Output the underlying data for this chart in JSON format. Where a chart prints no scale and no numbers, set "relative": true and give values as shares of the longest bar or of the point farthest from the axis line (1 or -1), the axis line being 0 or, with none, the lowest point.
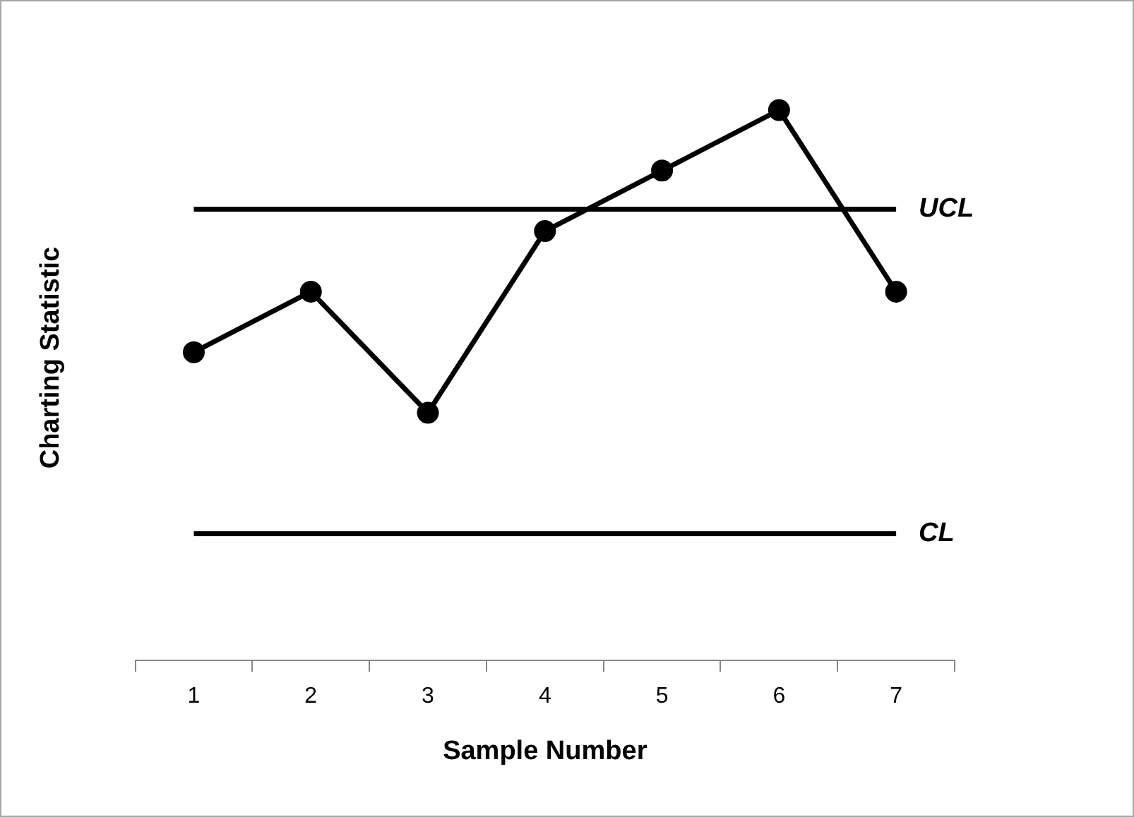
{
  "chart_data": {
    "type": "line",
    "xlabel": "Sample Number",
    "ylabel": "Charting Statistic",
    "categories": [
      "1",
      "2",
      "3",
      "4",
      "5",
      "6",
      "7"
    ],
    "series": [
      {
        "color": "#000000",
        "values": [
          0.56,
          0.67,
          0.45,
          0.78,
          0.89,
          1,
          0.67
        ]
      }
    ],
    "relative": true,
    "marker": "circle",
    "line_style": "solid",
    "grid": false,
    "legend": false,
    "ref_lines": [
      {
        "axis": "y",
        "value": 0.82,
        "label": "UCL",
        "color": "#000000"
      },
      {
        "axis": "y",
        "value": 0.23,
        "label": "CL",
        "color": "#000000"
      }
    ]
  }
}
